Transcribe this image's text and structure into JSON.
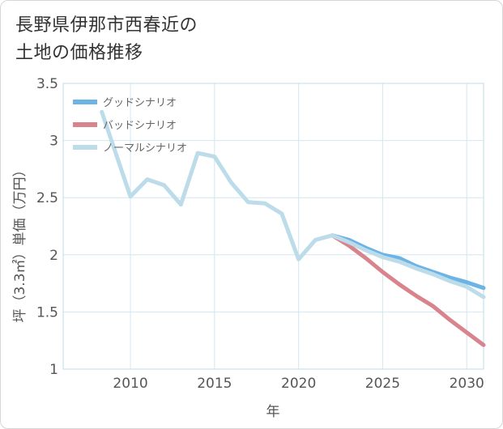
{
  "title": {
    "line1": "長野県伊那市西春近の",
    "line2": "土地の価格推移"
  },
  "chart_data": {
    "type": "line",
    "xlabel": "年",
    "ylabel": "坪（3.3㎡）単価（万円）",
    "xlim": [
      2006,
      2031
    ],
    "ylim": [
      1,
      3.5
    ],
    "x_ticks": [
      "2010",
      "2015",
      "2020",
      "2025",
      "2030"
    ],
    "y_ticks": [
      "1",
      "1.5",
      "2",
      "2.5",
      "3",
      "3.5"
    ],
    "grid": true,
    "legend_position": "top-left",
    "series": [
      {
        "name": "グッドシナリオ",
        "color": "#6cb3e6",
        "x": [
          2022,
          2023,
          2024,
          2025,
          2026,
          2027,
          2028,
          2029,
          2030,
          2031
        ],
        "y": [
          2.17,
          2.13,
          2.06,
          2.0,
          1.97,
          1.9,
          1.85,
          1.8,
          1.76,
          1.71
        ]
      },
      {
        "name": "バッドシナリオ",
        "color": "#d9838c",
        "x": [
          2022,
          2023,
          2024,
          2025,
          2026,
          2027,
          2028,
          2029,
          2030,
          2031
        ],
        "y": [
          2.17,
          2.08,
          1.97,
          1.85,
          1.74,
          1.64,
          1.55,
          1.43,
          1.32,
          1.21
        ]
      },
      {
        "name": "ノーマルシナリオ",
        "color": "#bcdcea",
        "x": [
          2008.3,
          2010,
          2011,
          2012,
          2013,
          2014,
          2015,
          2016,
          2017,
          2018,
          2019,
          2020,
          2021,
          2022,
          2023,
          2024,
          2025,
          2026,
          2027,
          2028,
          2029,
          2030,
          2031
        ],
        "y": [
          3.25,
          2.51,
          2.66,
          2.61,
          2.44,
          2.89,
          2.86,
          2.63,
          2.46,
          2.45,
          2.36,
          1.96,
          2.13,
          2.17,
          2.11,
          2.04,
          1.98,
          1.94,
          1.88,
          1.83,
          1.77,
          1.72,
          1.63
        ]
      }
    ]
  }
}
